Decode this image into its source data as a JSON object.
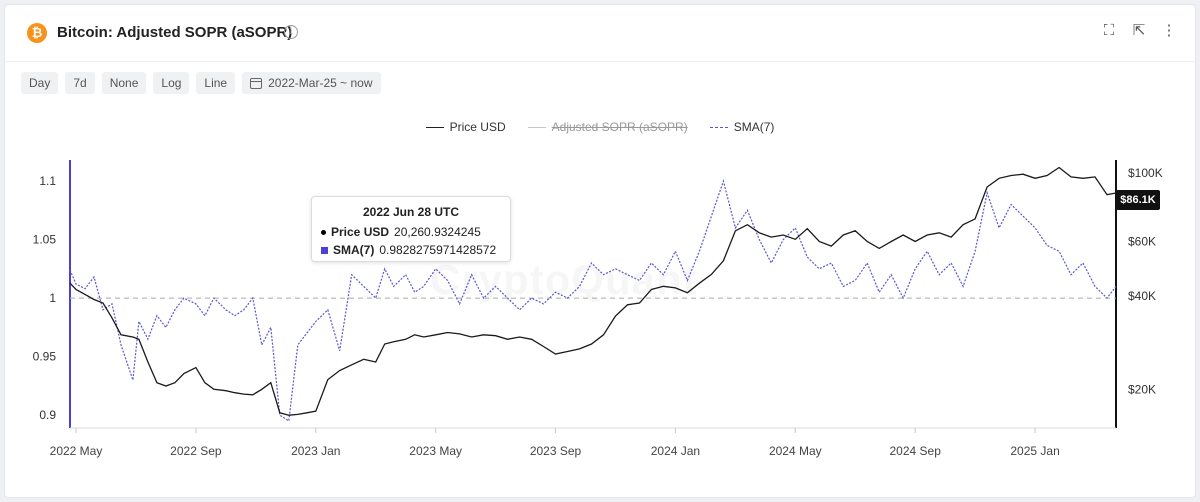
{
  "header": {
    "title": "Bitcoin: Adjusted SOPR (aSOPR)",
    "logo_glyph": "₿",
    "info_glyph": "i",
    "icons": [
      "fullscreen-icon",
      "external-link-icon",
      "more-vertical-icon"
    ]
  },
  "toolbar": {
    "chips": [
      "Day",
      "7d",
      "None",
      "Log",
      "Line"
    ],
    "date_range": "2022-Mar-25 ~ now"
  },
  "legend": {
    "price": "Price USD",
    "asopr": "Adjusted SOPR (aSOPR)",
    "sma": "SMA(7)"
  },
  "tooltip": {
    "date": "2022 Jun 28 UTC",
    "price_label": "Price USD",
    "price_value": "20,260.9324245",
    "sma_label": "SMA(7)",
    "sma_value": "0.9828275971428572"
  },
  "badge": "$86.1K",
  "watermark": "CryptoQuant",
  "colors": {
    "price": "#1a1a1a",
    "sma": "#5a56cf",
    "accent": "#4b3fd6",
    "btc": "#f7931a"
  },
  "chart_data": {
    "type": "line",
    "x_ticks": [
      "2022 May",
      "2022 Sep",
      "2023 Jan",
      "2023 May",
      "2023 Sep",
      "2024 Jan",
      "2024 May",
      "2024 Sep",
      "2025 Jan"
    ],
    "x_tick_months": [
      2,
      6,
      10,
      14,
      18,
      22,
      26,
      30,
      34
    ],
    "x_range_months": [
      1.8,
      36.7
    ],
    "y_left": {
      "ticks": [
        "1.1",
        "1.05",
        "1",
        "0.95",
        "0.9"
      ],
      "values": [
        1.1,
        1.05,
        1.0,
        0.95,
        0.9
      ],
      "range": [
        0.889,
        1.118
      ]
    },
    "y_right": {
      "scale": "log",
      "ticks": [
        "$100K",
        "$60K",
        "$40K",
        "$20K"
      ],
      "values": [
        100000,
        60000,
        40000,
        20000
      ],
      "range": [
        15000,
        110000
      ]
    },
    "reference_line": 1.0,
    "series": [
      {
        "name": "Price USD",
        "axis": "right",
        "x": [
          1.8,
          2.0,
          2.3,
          2.6,
          2.9,
          3.2,
          3.5,
          3.9,
          4.1,
          4.4,
          4.7,
          5.0,
          5.3,
          5.6,
          6.0,
          6.3,
          6.6,
          7.0,
          7.3,
          7.6,
          7.9,
          8.2,
          8.5,
          8.8,
          9.1,
          9.4,
          9.7,
          10.0,
          10.4,
          10.8,
          11.2,
          11.6,
          12.0,
          12.3,
          12.6,
          13.0,
          13.3,
          13.6,
          14.0,
          14.4,
          14.8,
          15.2,
          15.6,
          16.0,
          16.4,
          16.8,
          17.2,
          17.6,
          18.0,
          18.4,
          18.8,
          19.2,
          19.6,
          20.0,
          20.4,
          20.8,
          21.2,
          21.6,
          22.0,
          22.4,
          22.8,
          23.2,
          23.6,
          24.0,
          24.4,
          24.8,
          25.2,
          25.6,
          26.0,
          26.4,
          26.8,
          27.2,
          27.6,
          28.0,
          28.4,
          28.8,
          29.2,
          29.6,
          30.0,
          30.4,
          30.8,
          31.2,
          31.6,
          32.0,
          32.4,
          32.8,
          33.2,
          33.6,
          34.0,
          34.4,
          34.8,
          35.2,
          35.6,
          36.0,
          36.4,
          36.7
        ],
        "values": [
          44000,
          42000,
          40500,
          39000,
          38000,
          34000,
          30000,
          29500,
          29000,
          24500,
          21000,
          20500,
          21000,
          22500,
          23500,
          21000,
          20000,
          19800,
          19500,
          19300,
          19200,
          20000,
          21000,
          16800,
          16500,
          16600,
          16800,
          17000,
          21500,
          23000,
          24000,
          25000,
          24500,
          28000,
          28500,
          29000,
          30000,
          29500,
          30000,
          30500,
          30200,
          29500,
          30000,
          29800,
          29000,
          29500,
          29000,
          27500,
          26000,
          26500,
          27000,
          28000,
          30000,
          34500,
          37500,
          38000,
          42000,
          43000,
          42500,
          41000,
          44000,
          47000,
          52000,
          65000,
          68000,
          64000,
          62000,
          63000,
          61000,
          66000,
          60000,
          58000,
          63000,
          65000,
          60000,
          57000,
          60000,
          63000,
          60000,
          63000,
          64000,
          62000,
          68000,
          71000,
          90000,
          96000,
          98000,
          99000,
          96000,
          98000,
          104000,
          97000,
          96000,
          97000,
          85000,
          86100
        ]
      },
      {
        "name": "SMA(7)",
        "axis": "left",
        "x": [
          1.8,
          2.0,
          2.3,
          2.6,
          2.9,
          3.2,
          3.5,
          3.9,
          4.1,
          4.4,
          4.7,
          5.0,
          5.3,
          5.6,
          6.0,
          6.3,
          6.6,
          7.0,
          7.3,
          7.6,
          7.9,
          8.2,
          8.5,
          8.8,
          9.1,
          9.4,
          9.7,
          10.0,
          10.4,
          10.8,
          11.2,
          11.6,
          12.0,
          12.3,
          12.6,
          13.0,
          13.3,
          13.6,
          14.0,
          14.4,
          14.8,
          15.2,
          15.6,
          16.0,
          16.4,
          16.8,
          17.2,
          17.6,
          18.0,
          18.4,
          18.8,
          19.2,
          19.6,
          20.0,
          20.4,
          20.8,
          21.2,
          21.6,
          22.0,
          22.4,
          22.8,
          23.2,
          23.6,
          24.0,
          24.4,
          24.8,
          25.2,
          25.6,
          26.0,
          26.4,
          26.8,
          27.2,
          27.6,
          28.0,
          28.4,
          28.8,
          29.2,
          29.6,
          30.0,
          30.4,
          30.8,
          31.2,
          31.6,
          32.0,
          32.4,
          32.8,
          33.2,
          33.6,
          34.0,
          34.4,
          34.8,
          35.2,
          35.6,
          36.0,
          36.4,
          36.7
        ],
        "values": [
          1.024,
          1.012,
          1.008,
          1.018,
          0.99,
          0.995,
          0.96,
          0.93,
          0.98,
          0.965,
          0.985,
          0.975,
          0.99,
          1.0,
          0.995,
          0.985,
          1.0,
          0.99,
          0.985,
          0.99,
          1.0,
          0.96,
          0.975,
          0.9,
          0.895,
          0.96,
          0.97,
          0.98,
          0.99,
          0.955,
          1.02,
          1.01,
          1.0,
          1.025,
          1.01,
          1.02,
          1.005,
          1.01,
          1.025,
          1.015,
          0.995,
          1.02,
          1.0,
          1.01,
          1.0,
          0.99,
          1.0,
          0.995,
          1.005,
          1.0,
          1.01,
          1.03,
          1.02,
          1.025,
          1.02,
          1.015,
          1.03,
          1.02,
          1.04,
          1.015,
          1.04,
          1.07,
          1.1,
          1.06,
          1.075,
          1.05,
          1.03,
          1.05,
          1.06,
          1.035,
          1.025,
          1.03,
          1.01,
          1.015,
          1.03,
          1.005,
          1.02,
          1.0,
          1.025,
          1.04,
          1.02,
          1.03,
          1.01,
          1.04,
          1.09,
          1.06,
          1.08,
          1.07,
          1.06,
          1.045,
          1.04,
          1.02,
          1.03,
          1.01,
          1.0,
          1.01
        ]
      }
    ]
  }
}
